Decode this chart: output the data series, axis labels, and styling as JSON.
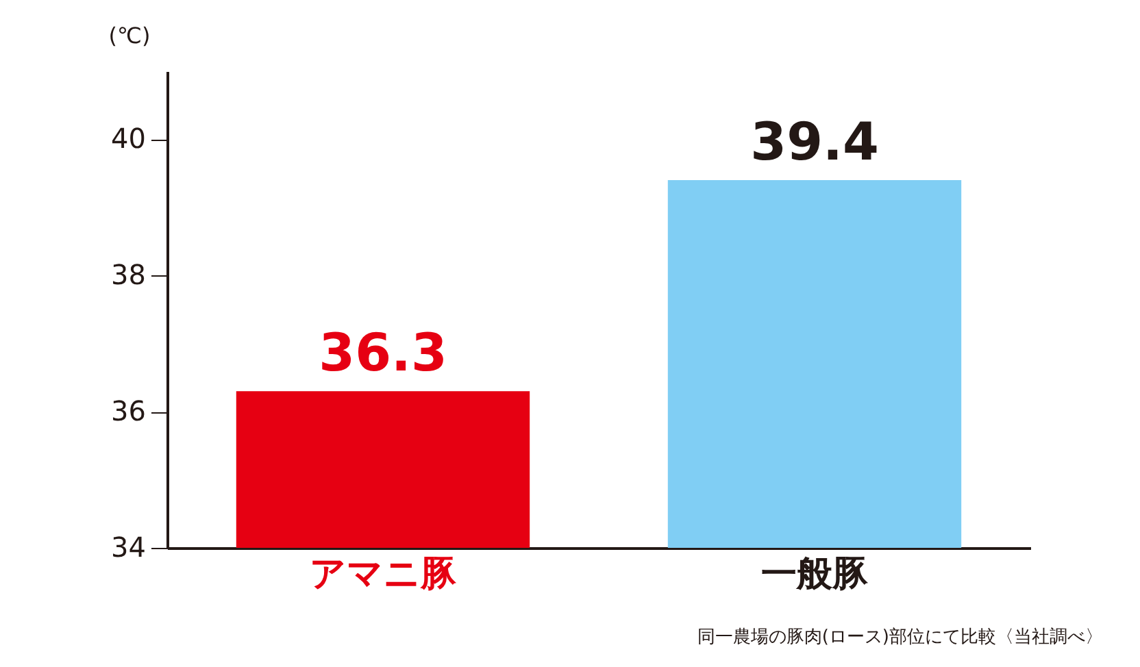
{
  "chart_data": {
    "type": "bar",
    "ylabel": "(℃)",
    "categories": [
      "アマニ豚",
      "一般豚"
    ],
    "values": [
      36.3,
      39.4
    ],
    "colors": [
      "#e60012",
      "#80cef4"
    ],
    "ylim": [
      34,
      41
    ],
    "yticks": [
      34,
      36,
      38,
      40
    ],
    "grid": false,
    "data_labels": true,
    "annotations": [
      "同一農場の豚肉(ロース)部位にて比較〈当社調べ〉"
    ]
  }
}
